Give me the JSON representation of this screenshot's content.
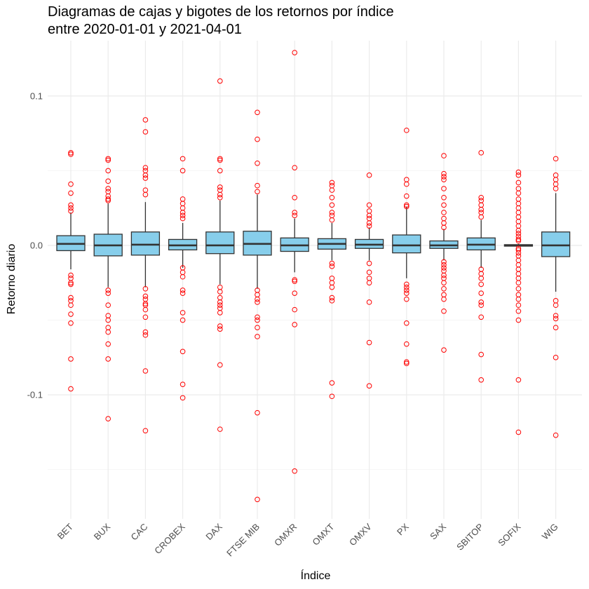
{
  "chart_data": {
    "type": "boxplot",
    "title_lines": [
      "Diagramas de cajas y bigotes de los retornos por índice",
      "entre 2020-01-01 y 2021-04-01"
    ],
    "xlabel": "Índice",
    "ylabel": "Retorno diario",
    "ylim": [
      -0.183,
      0.137
    ],
    "y_ticks": [
      0.1,
      0.0,
      -0.1
    ],
    "y_tick_labels": [
      "0.1",
      "0.0",
      "-0.1"
    ],
    "grid": true,
    "legend": "none",
    "colors": {
      "box_fill": "#87CEEB",
      "box_stroke": "#333333",
      "outlier": "#FF0000",
      "grid_major": "#EBEBEB",
      "grid_minor": "#F5F5F5"
    },
    "categories": [
      "BET",
      "BUX",
      "CAC",
      "CROBEX",
      "DAX",
      "FTSE MIB",
      "OMXR",
      "OMXT",
      "OMXV",
      "PX",
      "SAX",
      "SBITOP",
      "SOFIX",
      "WIG"
    ],
    "boxes": [
      {
        "name": "BET",
        "lower_whisker": -0.016,
        "q1": -0.0035,
        "median": 0.001,
        "q3": 0.0065,
        "upper_whisker": 0.022,
        "outliers": [
          0.062,
          0.061,
          0.041,
          0.035,
          0.027,
          0.025,
          0.023,
          -0.02,
          -0.022,
          -0.025,
          -0.026,
          -0.035,
          -0.037,
          -0.04,
          -0.046,
          -0.052,
          -0.076,
          -0.096
        ]
      },
      {
        "name": "BUX",
        "lower_whisker": -0.028,
        "q1": -0.007,
        "median": 0.0,
        "q3": 0.0075,
        "upper_whisker": 0.028,
        "outliers": [
          0.058,
          0.057,
          0.05,
          0.043,
          0.038,
          0.036,
          0.033,
          0.031,
          0.03,
          -0.03,
          -0.032,
          -0.04,
          -0.047,
          -0.05,
          -0.055,
          -0.058,
          -0.066,
          -0.076,
          -0.116
        ]
      },
      {
        "name": "CAC",
        "lower_whisker": -0.028,
        "q1": -0.0065,
        "median": 0.0005,
        "q3": 0.009,
        "upper_whisker": 0.029,
        "outliers": [
          0.084,
          0.076,
          0.052,
          0.05,
          0.047,
          0.045,
          0.037,
          0.034,
          -0.029,
          -0.034,
          -0.036,
          -0.039,
          -0.04,
          -0.043,
          -0.048,
          -0.058,
          -0.06,
          -0.084,
          -0.124
        ]
      },
      {
        "name": "CROBEX",
        "lower_whisker": -0.015,
        "q1": -0.003,
        "median": 0.0,
        "q3": 0.004,
        "upper_whisker": 0.015,
        "outliers": [
          0.058,
          0.05,
          0.031,
          0.028,
          0.025,
          0.022,
          0.02,
          0.018,
          -0.015,
          -0.018,
          -0.021,
          -0.03,
          -0.032,
          -0.045,
          -0.05,
          -0.071,
          -0.093,
          -0.102
        ]
      },
      {
        "name": "DAX",
        "lower_whisker": -0.026,
        "q1": -0.0055,
        "median": 0.0,
        "q3": 0.009,
        "upper_whisker": 0.03,
        "outliers": [
          0.11,
          0.058,
          0.057,
          0.05,
          0.039,
          0.037,
          0.034,
          0.032,
          -0.028,
          -0.031,
          -0.035,
          -0.038,
          -0.04,
          -0.042,
          -0.045,
          -0.054,
          -0.056,
          -0.08,
          -0.123
        ]
      },
      {
        "name": "FTSE MIB",
        "lower_whisker": -0.029,
        "q1": -0.0065,
        "median": 0.001,
        "q3": 0.0095,
        "upper_whisker": 0.034,
        "outliers": [
          0.089,
          0.071,
          0.055,
          0.04,
          0.036,
          -0.03,
          -0.033,
          -0.036,
          -0.038,
          -0.048,
          -0.05,
          -0.055,
          -0.061,
          -0.112,
          -0.17
        ]
      },
      {
        "name": "OMXR",
        "lower_whisker": -0.018,
        "q1": -0.004,
        "median": 0.0,
        "q3": 0.005,
        "upper_whisker": 0.018,
        "outliers": [
          0.129,
          0.052,
          0.032,
          0.022,
          0.02,
          -0.023,
          -0.024,
          -0.032,
          -0.043,
          -0.053,
          -0.151
        ]
      },
      {
        "name": "OMXT",
        "lower_whisker": -0.01,
        "q1": -0.0025,
        "median": 0.001,
        "q3": 0.0045,
        "upper_whisker": 0.015,
        "outliers": [
          0.042,
          0.04,
          0.037,
          0.032,
          0.027,
          0.022,
          0.02,
          0.017,
          -0.012,
          -0.014,
          -0.022,
          -0.025,
          -0.028,
          -0.035,
          -0.037,
          -0.092,
          -0.101
        ]
      },
      {
        "name": "OMXV",
        "lower_whisker": -0.01,
        "q1": -0.002,
        "median": 0.0005,
        "q3": 0.004,
        "upper_whisker": 0.012,
        "outliers": [
          0.047,
          0.027,
          0.023,
          0.02,
          0.018,
          0.015,
          0.013,
          -0.012,
          -0.018,
          -0.022,
          -0.025,
          -0.038,
          -0.065,
          -0.094
        ]
      },
      {
        "name": "PX",
        "lower_whisker": -0.022,
        "q1": -0.005,
        "median": 0.0,
        "q3": 0.007,
        "upper_whisker": 0.026,
        "outliers": [
          0.077,
          0.044,
          0.041,
          0.033,
          0.027,
          0.026,
          -0.026,
          -0.028,
          -0.03,
          -0.032,
          -0.036,
          -0.052,
          -0.066,
          -0.078,
          -0.079
        ]
      },
      {
        "name": "SAX",
        "lower_whisker": -0.01,
        "q1": -0.002,
        "median": 0.0,
        "q3": 0.003,
        "upper_whisker": 0.011,
        "outliers": [
          0.06,
          0.048,
          0.046,
          0.044,
          0.038,
          0.032,
          0.027,
          0.022,
          0.018,
          0.015,
          0.012,
          -0.011,
          -0.013,
          -0.015,
          -0.017,
          -0.02,
          -0.022,
          -0.025,
          -0.029,
          -0.033,
          -0.036,
          -0.044,
          -0.07
        ]
      },
      {
        "name": "SBITOP",
        "lower_whisker": -0.015,
        "q1": -0.003,
        "median": 0.0005,
        "q3": 0.005,
        "upper_whisker": 0.017,
        "outliers": [
          0.062,
          0.032,
          0.03,
          0.027,
          0.024,
          0.022,
          0.019,
          -0.016,
          -0.019,
          -0.022,
          -0.026,
          -0.032,
          -0.038,
          -0.04,
          -0.048,
          -0.073,
          -0.09
        ]
      },
      {
        "name": "SOFIX",
        "lower_whisker": -0.001,
        "q1": -0.0005,
        "median": 0.0,
        "q3": 0.0005,
        "upper_whisker": 0.001,
        "outliers": [
          0.049,
          0.047,
          0.042,
          0.038,
          0.035,
          0.031,
          0.028,
          0.025,
          0.022,
          0.019,
          0.016,
          0.013,
          0.01,
          0.008,
          0.006,
          0.004,
          0.003,
          -0.002,
          -0.003,
          -0.005,
          -0.007,
          -0.01,
          -0.013,
          -0.016,
          -0.019,
          -0.022,
          -0.025,
          -0.029,
          -0.033,
          -0.036,
          -0.04,
          -0.044,
          -0.05,
          -0.09,
          -0.125
        ]
      },
      {
        "name": "WIG",
        "lower_whisker": -0.031,
        "q1": -0.0075,
        "median": 0.0,
        "q3": 0.009,
        "upper_whisker": 0.035,
        "outliers": [
          0.058,
          0.047,
          0.044,
          0.041,
          0.038,
          -0.037,
          -0.04,
          -0.047,
          -0.049,
          -0.055,
          -0.075,
          -0.127
        ]
      }
    ]
  }
}
